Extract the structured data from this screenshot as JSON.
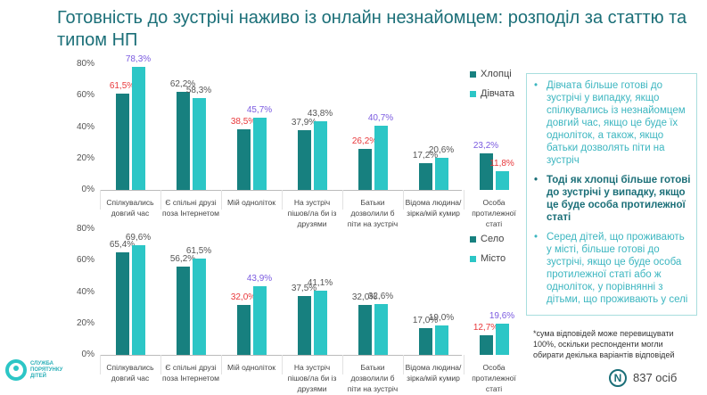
{
  "title": "Готовність до зустрічі наживо із онлайн незнайомцем: розподіл за статтю та типом НП",
  "chart_data": [
    {
      "type": "bar",
      "categories": [
        "Спілкувались довгий час",
        "Є спільні друзі поза Інтернетом",
        "Мій одноліток",
        "На зустріч пішов/ла би із друзями",
        "Батьки дозволили б піти на зустріч",
        "Відома людина/зірка/мій кумир",
        "Особа протилежної статі"
      ],
      "series": [
        {
          "name": "Хлопці",
          "color": "#17807f",
          "values": [
            61.5,
            62.2,
            38.5,
            37.9,
            26.2,
            17.2,
            23.2
          ],
          "value_labels": [
            "61,5%",
            "62,2%",
            "38,5%",
            "37,9%",
            "26,2%",
            "17,2%",
            "23,2%"
          ],
          "label_colors": [
            "#e8383b",
            "#555555",
            "#e8383b",
            "#555555",
            "#e8383b",
            "#555555",
            "#7b5be0"
          ]
        },
        {
          "name": "Дівчата",
          "color": "#2cc6c6",
          "values": [
            78.3,
            58.3,
            45.7,
            43.8,
            40.7,
            20.6,
            11.8
          ],
          "value_labels": [
            "78,3%",
            "58,3%",
            "45,7%",
            "43,8%",
            "40,7%",
            "20,6%",
            "11,8%"
          ],
          "label_colors": [
            "#7b5be0",
            "#555555",
            "#7b5be0",
            "#555555",
            "#7b5be0",
            "#555555",
            "#e8383b"
          ]
        }
      ],
      "ylim": [
        0,
        80
      ],
      "yticks": [
        {
          "value": 0,
          "label": "0%"
        },
        {
          "value": 20,
          "label": "20%"
        },
        {
          "value": 40,
          "label": "40%"
        },
        {
          "value": 60,
          "label": "60%"
        },
        {
          "value": 80,
          "label": "80%"
        }
      ],
      "grid": false
    },
    {
      "type": "bar",
      "categories": [
        "Спілкувались довгий час",
        "Є спільні друзі поза Інтернетом",
        "Мій одноліток",
        "На зустріч пішов/ла би із друзями",
        "Батьки дозволили б піти на зустріч",
        "Відома людина/зірка/мій кумир",
        "Особа протилежної статі"
      ],
      "series": [
        {
          "name": "Село",
          "color": "#17807f",
          "values": [
            65.4,
            56.2,
            32.0,
            37.5,
            32.0,
            17.0,
            12.7
          ],
          "value_labels": [
            "65,4%",
            "56,2%",
            "32,0%",
            "37,5%",
            "32,0%",
            "17,0%",
            "12,7%"
          ],
          "label_colors": [
            "#555555",
            "#555555",
            "#e8383b",
            "#555555",
            "#555555",
            "#555555",
            "#e8383b"
          ]
        },
        {
          "name": "Місто",
          "color": "#2cc6c6",
          "values": [
            69.6,
            61.5,
            43.9,
            41.1,
            32.6,
            19.0,
            19.6
          ],
          "value_labels": [
            "69,6%",
            "61,5%",
            "43,9%",
            "41,1%",
            "32,6%",
            "19,0%",
            "19,6%"
          ],
          "label_colors": [
            "#555555",
            "#555555",
            "#7b5be0",
            "#555555",
            "#555555",
            "#555555",
            "#7b5be0"
          ]
        }
      ],
      "ylim": [
        0,
        80
      ],
      "yticks": [
        {
          "value": 0,
          "label": "0%"
        },
        {
          "value": 20,
          "label": "20%"
        },
        {
          "value": 40,
          "label": "40%"
        },
        {
          "value": 60,
          "label": "60%"
        },
        {
          "value": 80,
          "label": "80%"
        }
      ],
      "grid": false
    }
  ],
  "notes": {
    "bullets": [
      "Дівчата більше готові до зустрічі у випадку, якщо спілкувались із незнайомцем довгий час, якщо це буде їх одноліток, а також, якщо батьки дозволять піти на зустріч",
      "Тоді як хлопці більше готові до зустрічі у випадку, якщо це буде особа протилежної статі",
      "Серед дітей, що проживають у місті, більше готові до зустрічі, якщо це буде особа протилежної статі або ж одноліток, у порівнянні з дітьми, що проживають у селі"
    ],
    "footnote": "*сума відповідей може перевищувати 100%, оскільки респонденти могли обирати декілька варіантів відповідей",
    "sample_mark": "N",
    "sample": "837 осіб"
  },
  "logo": "СЛУЖБА ПОРЯТУНКУ ДІТЕЙ"
}
